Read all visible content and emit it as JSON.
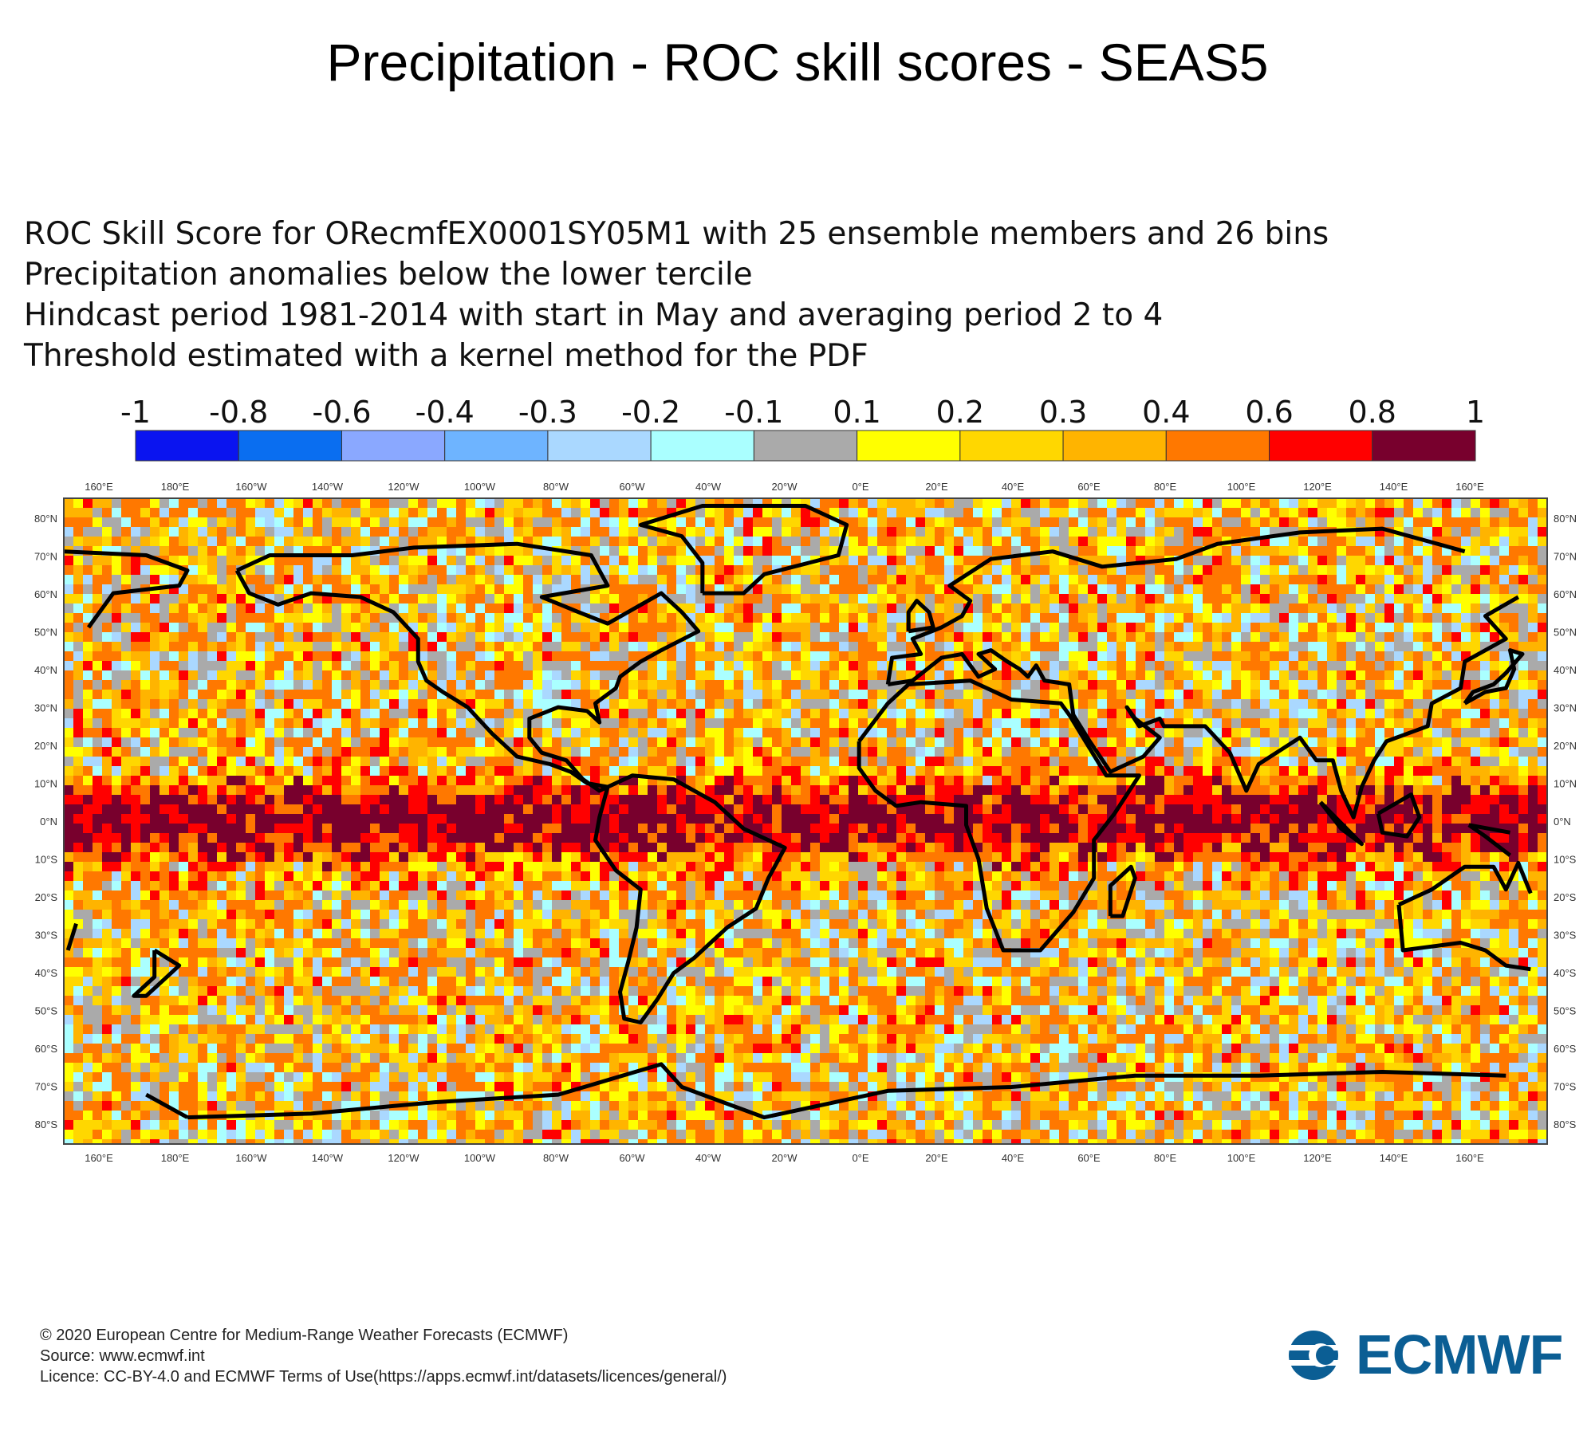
{
  "title": "Precipitation - ROC skill scores - SEAS5",
  "description": [
    "ROC Skill Score for ORecmfEX0001SY05M1 with 25 ensemble members and 26 bins",
    "Precipitation anomalies below the lower tercile",
    "Hindcast period 1981-2014 with start in May and averaging period  2 to  4",
    "Threshold estimated with a kernel method for the PDF"
  ],
  "colorbar": {
    "labels": [
      "-1",
      "-0.8",
      "-0.6",
      "-0.4",
      "-0.3",
      "-0.2",
      "-0.1",
      "0.1",
      "0.2",
      "0.3",
      "0.4",
      "0.6",
      "0.8",
      "1"
    ],
    "colors": [
      "#0a14f0",
      "#0a6ef0",
      "#8aa8ff",
      "#6eb4ff",
      "#aad8ff",
      "#aaffff",
      "#aaaaaa",
      "#ffff00",
      "#ffd700",
      "#ffb400",
      "#ff7800",
      "#ff0000",
      "#78002d"
    ]
  },
  "map": {
    "top_lon_labels": [
      "160°E",
      "180°E",
      "160°W",
      "140°W",
      "120°W",
      "100°W",
      "80°W",
      "60°W",
      "40°W",
      "20°W",
      "0°E",
      "20°E",
      "40°E",
      "60°E",
      "80°E",
      "100°E",
      "120°E",
      "140°E",
      "160°E"
    ],
    "bottom_lon_labels": [
      "160°E",
      "180°E",
      "160°W",
      "140°W",
      "120°W",
      "100°W",
      "80°W",
      "60°W",
      "40°W",
      "20°W",
      "0°E",
      "20°E",
      "40°E",
      "60°E",
      "80°E",
      "100°E",
      "120°E",
      "140°E",
      "160°E"
    ],
    "left_lat_labels": [
      "80°N",
      "70°N",
      "60°N",
      "50°N",
      "40°N",
      "30°N",
      "20°N",
      "10°N",
      "0°N",
      "10°S",
      "20°S",
      "30°S",
      "40°S",
      "50°S",
      "60°S",
      "70°S",
      "80°S"
    ],
    "right_lat_labels": [
      "80°N",
      "70°N",
      "60°N",
      "50°N",
      "40°N",
      "30°N",
      "20°N",
      "10°N",
      "0°N",
      "10°S",
      "20°S",
      "30°S",
      "40°S",
      "50°S",
      "60°S",
      "70°S",
      "80°S"
    ]
  },
  "footer": [
    "© 2020 European Centre for Medium-Range Weather Forecasts (ECMWF)",
    "Source: www.ecmwf.int",
    "Licence: CC-BY-4.0 and ECMWF Terms of Use(https://apps.ecmwf.int/datasets/licences/general/)"
  ],
  "logo": {
    "text": "ECMWF",
    "color": "#0b5e94"
  }
}
